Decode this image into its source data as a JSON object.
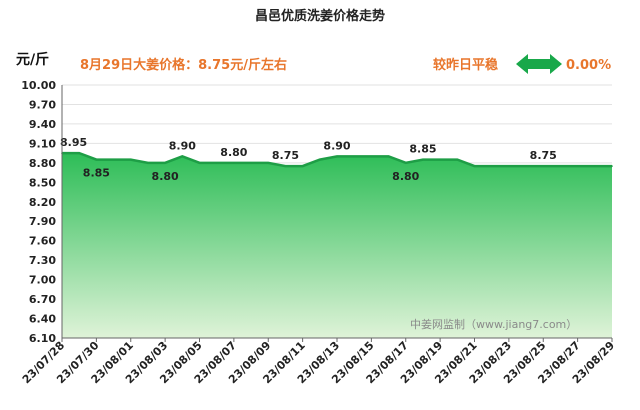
{
  "chart_data": {
    "type": "area",
    "title": "昌邑优质洗姜价格走势",
    "unit": "元/斤",
    "price_note": "8月29日大姜价格：8.75元/斤左右",
    "compare_label": "较昨日平稳",
    "change": "0.00%",
    "watermark": "中姜网监制（www.jiang7.com）",
    "yticks": [
      "6.10",
      "6.40",
      "6.70",
      "7.00",
      "7.30",
      "7.60",
      "7.90",
      "8.20",
      "8.50",
      "8.80",
      "9.10",
      "9.40",
      "9.70",
      "10.00"
    ],
    "ylim": [
      6.1,
      10.0
    ],
    "xtick_labels": [
      "23/07/28",
      "23/07/30",
      "23/08/01",
      "23/08/03",
      "23/08/05",
      "23/08/07",
      "23/08/09",
      "23/08/11",
      "23/08/13",
      "23/08/15",
      "23/08/17",
      "23/08/19",
      "23/08/21",
      "23/08/23",
      "23/08/25",
      "23/08/27",
      "23/08/29"
    ],
    "x": [
      "23/07/28",
      "23/07/29",
      "23/07/30",
      "23/07/31",
      "23/08/01",
      "23/08/02",
      "23/08/03",
      "23/08/04",
      "23/08/05",
      "23/08/06",
      "23/08/07",
      "23/08/08",
      "23/08/09",
      "23/08/10",
      "23/08/11",
      "23/08/12",
      "23/08/13",
      "23/08/14",
      "23/08/15",
      "23/08/16",
      "23/08/17",
      "23/08/18",
      "23/08/19",
      "23/08/20",
      "23/08/21",
      "23/08/22",
      "23/08/23",
      "23/08/24",
      "23/08/25",
      "23/08/26",
      "23/08/27",
      "23/08/28",
      "23/08/29"
    ],
    "values": [
      8.95,
      8.95,
      8.85,
      8.85,
      8.85,
      8.8,
      8.8,
      8.9,
      8.8,
      8.8,
      8.8,
      8.8,
      8.8,
      8.75,
      8.75,
      8.85,
      8.9,
      8.9,
      8.9,
      8.9,
      8.8,
      8.85,
      8.85,
      8.85,
      8.75,
      8.75,
      8.75,
      8.75,
      8.75,
      8.75,
      8.75,
      8.75,
      8.75
    ],
    "data_labels": [
      {
        "index": 0,
        "text": "8.95"
      },
      {
        "index": 2,
        "text": "8.85"
      },
      {
        "index": 6,
        "text": "8.80"
      },
      {
        "index": 7,
        "text": "8.90"
      },
      {
        "index": 10,
        "text": "8.80"
      },
      {
        "index": 13,
        "text": "8.75"
      },
      {
        "index": 16,
        "text": "8.90"
      },
      {
        "index": 20,
        "text": "8.80"
      },
      {
        "index": 21,
        "text": "8.85"
      },
      {
        "index": 28,
        "text": "8.75"
      }
    ],
    "colors": {
      "fill_top": "#2dbd57",
      "fill_bottom": "#dff3d8",
      "line": "#1e9e46",
      "accent": "#e8762c",
      "arrow": "#19a84a"
    },
    "grid": true
  }
}
